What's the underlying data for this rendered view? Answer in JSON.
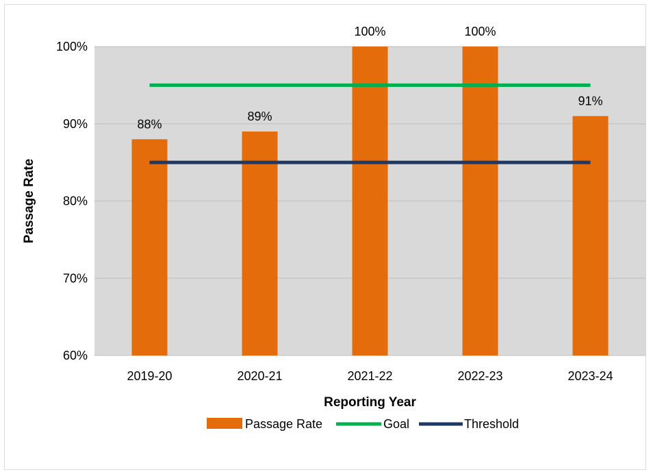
{
  "chart_data": {
    "type": "bar",
    "title": "",
    "xlabel": "Reporting Year",
    "ylabel": "Passage Rate",
    "categories": [
      "2019-20",
      "2020-21",
      "2021-22",
      "2022-23",
      "2023-24"
    ],
    "series": [
      {
        "name": "Passage Rate",
        "kind": "bar",
        "color": "#e46c0a",
        "values": [
          88,
          89,
          100,
          100,
          91
        ],
        "labels": [
          "88%",
          "89%",
          "100%",
          "100%",
          "91%"
        ]
      },
      {
        "name": "Goal",
        "kind": "line",
        "color": "#00b050",
        "values": [
          95,
          95,
          95,
          95,
          95
        ]
      },
      {
        "name": "Threshold",
        "kind": "line",
        "color": "#1f3864",
        "values": [
          85,
          85,
          85,
          85,
          85
        ]
      }
    ],
    "ylim": [
      60,
      100
    ],
    "yticks": [
      60,
      70,
      80,
      90,
      100
    ],
    "ytick_labels": [
      "60%",
      "70%",
      "80%",
      "90%",
      "100%"
    ],
    "grid": true,
    "legend_position": "bottom",
    "plot_background": "#d9d9d9"
  }
}
